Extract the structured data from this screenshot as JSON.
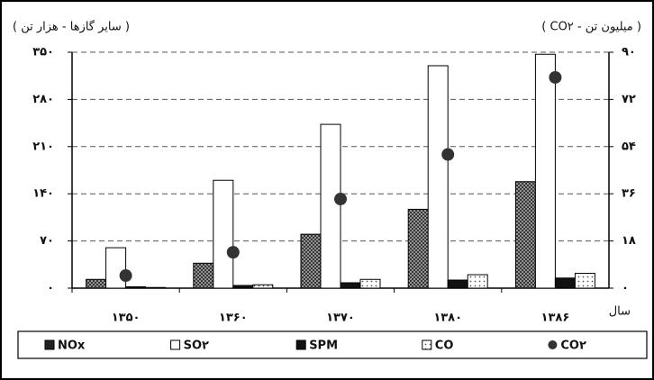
{
  "chart_data": {
    "type": "bar",
    "y_title": "( سایر گازها - هزار تن )",
    "y2_title": "( CO۲ - میلیون تن )",
    "x_title": "سال",
    "categories": [
      "۱۳۵۰",
      "۱۳۶۰",
      "۱۳۷۰",
      "۱۳۸۰",
      "۱۳۸۶"
    ],
    "ylim": [
      0,
      350
    ],
    "yticks": [
      {
        "value": 0,
        "label": "۰"
      },
      {
        "value": 70,
        "label": "۷۰"
      },
      {
        "value": 140,
        "label": "۱۴۰"
      },
      {
        "value": 210,
        "label": "۲۱۰"
      },
      {
        "value": 280,
        "label": "۲۸۰"
      },
      {
        "value": 350,
        "label": "۳۵۰"
      }
    ],
    "y2lim": [
      0,
      90
    ],
    "y2ticks": [
      {
        "value": 0,
        "label": "۰"
      },
      {
        "value": 18,
        "label": "۱۸"
      },
      {
        "value": 36,
        "label": "۳۶"
      },
      {
        "value": 54,
        "label": "۵۴"
      },
      {
        "value": 72,
        "label": "۷۲"
      },
      {
        "value": 90,
        "label": "۹۰"
      }
    ],
    "grid": true,
    "series": [
      {
        "name": "NOx",
        "color": "#444444",
        "pattern": "hatch",
        "values": [
          13,
          37,
          80,
          117,
          158
        ]
      },
      {
        "name": "SO۲",
        "color": "#ffffff",
        "values": [
          60,
          160,
          243,
          330,
          347
        ]
      },
      {
        "name": "SPM",
        "color": "#111111",
        "values": [
          2,
          4,
          8,
          12,
          15
        ]
      },
      {
        "name": "CO",
        "color": "#ffffff",
        "pattern": "dots",
        "values": [
          1,
          5,
          13,
          20,
          22
        ]
      },
      {
        "name": "CO۲",
        "color": "#333333",
        "axis": "y2",
        "values": [
          4.8,
          13.7,
          34,
          51,
          80.4
        ]
      }
    ]
  }
}
